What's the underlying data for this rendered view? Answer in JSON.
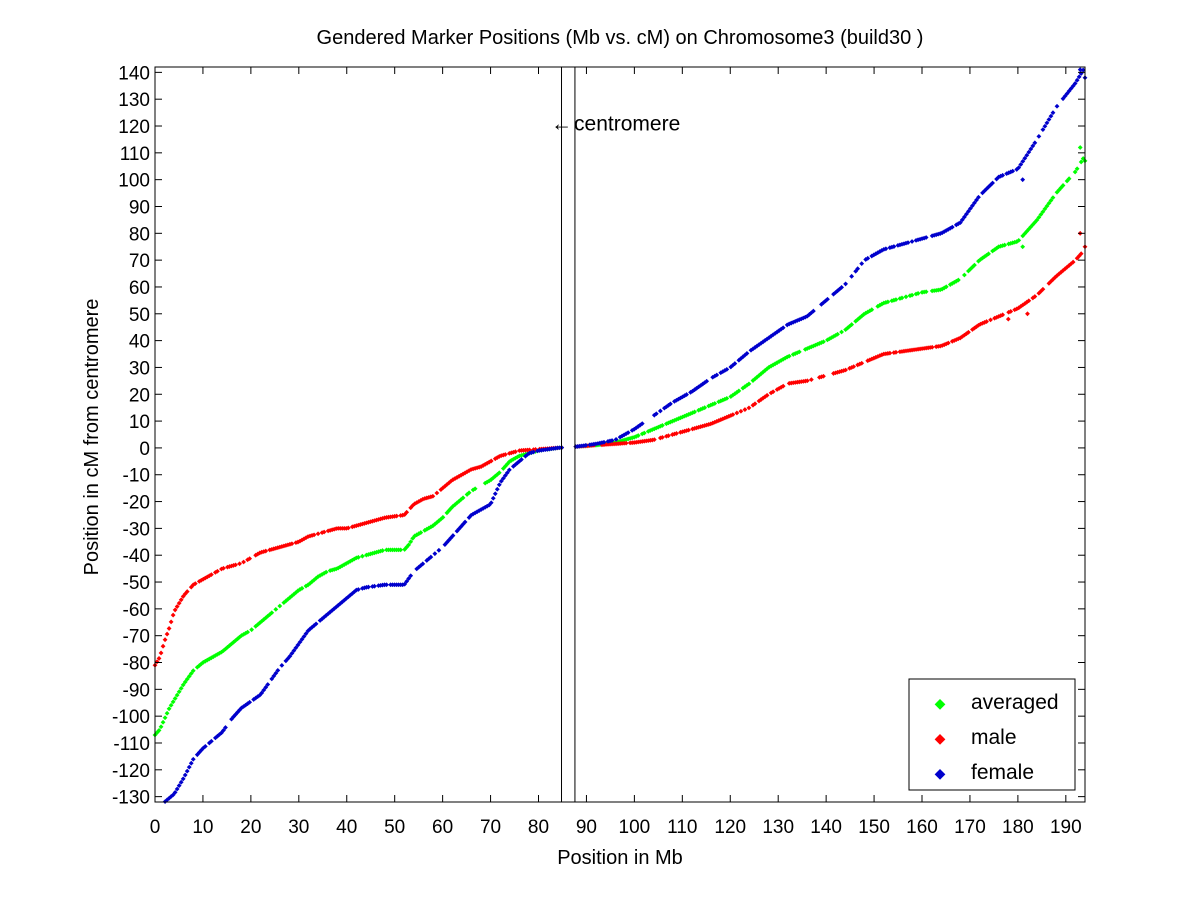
{
  "chart_data": {
    "type": "scatter",
    "title": "Gendered Marker Positions (Mb vs. cM) on Chromosome3 (build30 )",
    "xlabel": "Position in Mb",
    "ylabel": "Position in cM from centromere",
    "xlim": [
      0,
      194
    ],
    "ylim": [
      -132,
      142
    ],
    "xticks": [
      0,
      10,
      20,
      30,
      40,
      50,
      60,
      70,
      80,
      90,
      100,
      110,
      120,
      130,
      140,
      150,
      160,
      170,
      180,
      190
    ],
    "yticks": [
      140,
      130,
      120,
      110,
      100,
      90,
      80,
      70,
      60,
      50,
      40,
      30,
      20,
      10,
      0,
      -10,
      -20,
      -30,
      -40,
      -50,
      -60,
      -70,
      -80,
      -90,
      -100,
      -110,
      -120,
      -130
    ],
    "grid": false,
    "legend_position": "bottom-right",
    "annotations": [
      {
        "text": "centromere",
        "arrow": "←",
        "x": 87,
        "y": 121
      }
    ],
    "centromere_lines": [
      84.8,
      87.6
    ],
    "series": [
      {
        "name": "averaged",
        "color": "#00ff00",
        "anchors": [
          [
            0,
            -107
          ],
          [
            1,
            -105
          ],
          [
            2,
            -101
          ],
          [
            3,
            -97
          ],
          [
            4,
            -94
          ],
          [
            5,
            -91
          ],
          [
            6,
            -88
          ],
          [
            8,
            -83
          ],
          [
            10,
            -80
          ],
          [
            12,
            -78
          ],
          [
            14,
            -76
          ],
          [
            16,
            -73
          ],
          [
            18,
            -70
          ],
          [
            20,
            -68
          ],
          [
            22,
            -65
          ],
          [
            24,
            -62
          ],
          [
            26,
            -59
          ],
          [
            28,
            -56
          ],
          [
            30,
            -53
          ],
          [
            32,
            -51
          ],
          [
            34,
            -48
          ],
          [
            36,
            -46
          ],
          [
            38,
            -45
          ],
          [
            40,
            -43
          ],
          [
            42,
            -41
          ],
          [
            44,
            -40
          ],
          [
            48,
            -38
          ],
          [
            52,
            -38
          ],
          [
            53,
            -36
          ],
          [
            54,
            -33
          ],
          [
            56,
            -31
          ],
          [
            58,
            -29
          ],
          [
            60,
            -26
          ],
          [
            62,
            -22
          ],
          [
            64,
            -19
          ],
          [
            66,
            -16
          ],
          [
            68,
            -14
          ],
          [
            70,
            -12
          ],
          [
            72,
            -9
          ],
          [
            74,
            -5
          ],
          [
            76,
            -3
          ],
          [
            78,
            -2
          ],
          [
            80,
            -1
          ],
          [
            82,
            -0.5
          ],
          [
            84,
            0
          ],
          [
            88,
            0.5
          ],
          [
            92,
            1
          ],
          [
            96,
            2
          ],
          [
            100,
            4
          ],
          [
            104,
            7
          ],
          [
            108,
            10
          ],
          [
            112,
            13
          ],
          [
            116,
            16
          ],
          [
            120,
            19
          ],
          [
            124,
            24
          ],
          [
            128,
            30
          ],
          [
            132,
            34
          ],
          [
            136,
            37
          ],
          [
            140,
            40
          ],
          [
            144,
            44
          ],
          [
            148,
            50
          ],
          [
            152,
            54
          ],
          [
            156,
            56
          ],
          [
            160,
            58
          ],
          [
            164,
            59
          ],
          [
            168,
            63
          ],
          [
            172,
            70
          ],
          [
            176,
            75
          ],
          [
            180,
            77
          ],
          [
            184,
            85
          ],
          [
            188,
            95
          ],
          [
            192,
            103
          ],
          [
            194,
            109
          ]
        ],
        "points": [
          [
            181,
            75
          ],
          [
            193,
            112
          ],
          [
            194,
            107
          ]
        ]
      },
      {
        "name": "male",
        "color": "#ff0000",
        "anchors": [
          [
            0,
            -81
          ],
          [
            1,
            -78
          ],
          [
            2,
            -72
          ],
          [
            3,
            -67
          ],
          [
            4,
            -61
          ],
          [
            5,
            -58
          ],
          [
            6,
            -55
          ],
          [
            8,
            -51
          ],
          [
            10,
            -49
          ],
          [
            12,
            -47
          ],
          [
            14,
            -45
          ],
          [
            16,
            -44
          ],
          [
            18,
            -43
          ],
          [
            20,
            -41
          ],
          [
            22,
            -39
          ],
          [
            24,
            -38
          ],
          [
            26,
            -37
          ],
          [
            28,
            -36
          ],
          [
            30,
            -35
          ],
          [
            32,
            -33
          ],
          [
            34,
            -32
          ],
          [
            36,
            -31
          ],
          [
            38,
            -30
          ],
          [
            40,
            -30
          ],
          [
            42,
            -29
          ],
          [
            44,
            -28
          ],
          [
            48,
            -26
          ],
          [
            52,
            -25
          ],
          [
            54,
            -21
          ],
          [
            56,
            -19
          ],
          [
            58,
            -18
          ],
          [
            60,
            -15
          ],
          [
            62,
            -12
          ],
          [
            64,
            -10
          ],
          [
            66,
            -8
          ],
          [
            68,
            -7
          ],
          [
            70,
            -5
          ],
          [
            72,
            -3
          ],
          [
            74,
            -2
          ],
          [
            76,
            -1
          ],
          [
            80,
            -0.5
          ],
          [
            84,
            0
          ],
          [
            88,
            0.5
          ],
          [
            92,
            1
          ],
          [
            96,
            1.5
          ],
          [
            100,
            2
          ],
          [
            104,
            3
          ],
          [
            108,
            5
          ],
          [
            112,
            7
          ],
          [
            116,
            9
          ],
          [
            120,
            12
          ],
          [
            124,
            15
          ],
          [
            128,
            20
          ],
          [
            132,
            24
          ],
          [
            136,
            25
          ],
          [
            140,
            27
          ],
          [
            144,
            29
          ],
          [
            148,
            32
          ],
          [
            152,
            35
          ],
          [
            156,
            36
          ],
          [
            160,
            37
          ],
          [
            164,
            38
          ],
          [
            168,
            41
          ],
          [
            172,
            46
          ],
          [
            176,
            49
          ],
          [
            180,
            52
          ],
          [
            184,
            57
          ],
          [
            188,
            64
          ],
          [
            192,
            70
          ],
          [
            194,
            74
          ]
        ],
        "points": [
          [
            178,
            48
          ],
          [
            182,
            50
          ],
          [
            193,
            80
          ],
          [
            194,
            75
          ]
        ]
      },
      {
        "name": "female",
        "color": "#0000cc",
        "anchors": [
          [
            0,
            -133
          ],
          [
            2,
            -132
          ],
          [
            4,
            -129
          ],
          [
            6,
            -123
          ],
          [
            8,
            -116
          ],
          [
            10,
            -112
          ],
          [
            12,
            -109
          ],
          [
            14,
            -106
          ],
          [
            16,
            -101
          ],
          [
            18,
            -97
          ],
          [
            22,
            -92
          ],
          [
            24,
            -87
          ],
          [
            26,
            -82
          ],
          [
            28,
            -78
          ],
          [
            30,
            -73
          ],
          [
            32,
            -68
          ],
          [
            34,
            -65
          ],
          [
            36,
            -62
          ],
          [
            38,
            -59
          ],
          [
            40,
            -56
          ],
          [
            42,
            -53
          ],
          [
            44,
            -52
          ],
          [
            48,
            -51
          ],
          [
            52,
            -51
          ],
          [
            54,
            -46
          ],
          [
            56,
            -43
          ],
          [
            58,
            -40
          ],
          [
            60,
            -37
          ],
          [
            62,
            -33
          ],
          [
            64,
            -29
          ],
          [
            66,
            -25
          ],
          [
            68,
            -23
          ],
          [
            70,
            -21
          ],
          [
            72,
            -13
          ],
          [
            74,
            -8
          ],
          [
            76,
            -5
          ],
          [
            78,
            -2
          ],
          [
            80,
            -1
          ],
          [
            84,
            0
          ],
          [
            88,
            0.5
          ],
          [
            92,
            1.5
          ],
          [
            96,
            3
          ],
          [
            100,
            7
          ],
          [
            104,
            12
          ],
          [
            108,
            17
          ],
          [
            112,
            21
          ],
          [
            116,
            26
          ],
          [
            120,
            30
          ],
          [
            124,
            36
          ],
          [
            128,
            41
          ],
          [
            132,
            46
          ],
          [
            136,
            49
          ],
          [
            140,
            55
          ],
          [
            144,
            61
          ],
          [
            148,
            70
          ],
          [
            152,
            74
          ],
          [
            156,
            76
          ],
          [
            160,
            78
          ],
          [
            164,
            80
          ],
          [
            168,
            84
          ],
          [
            172,
            94
          ],
          [
            176,
            101
          ],
          [
            180,
            104
          ],
          [
            184,
            115
          ],
          [
            188,
            127
          ],
          [
            192,
            136
          ],
          [
            194,
            142
          ]
        ],
        "points": [
          [
            181,
            100
          ],
          [
            193,
            141
          ],
          [
            194,
            138
          ]
        ]
      }
    ]
  }
}
